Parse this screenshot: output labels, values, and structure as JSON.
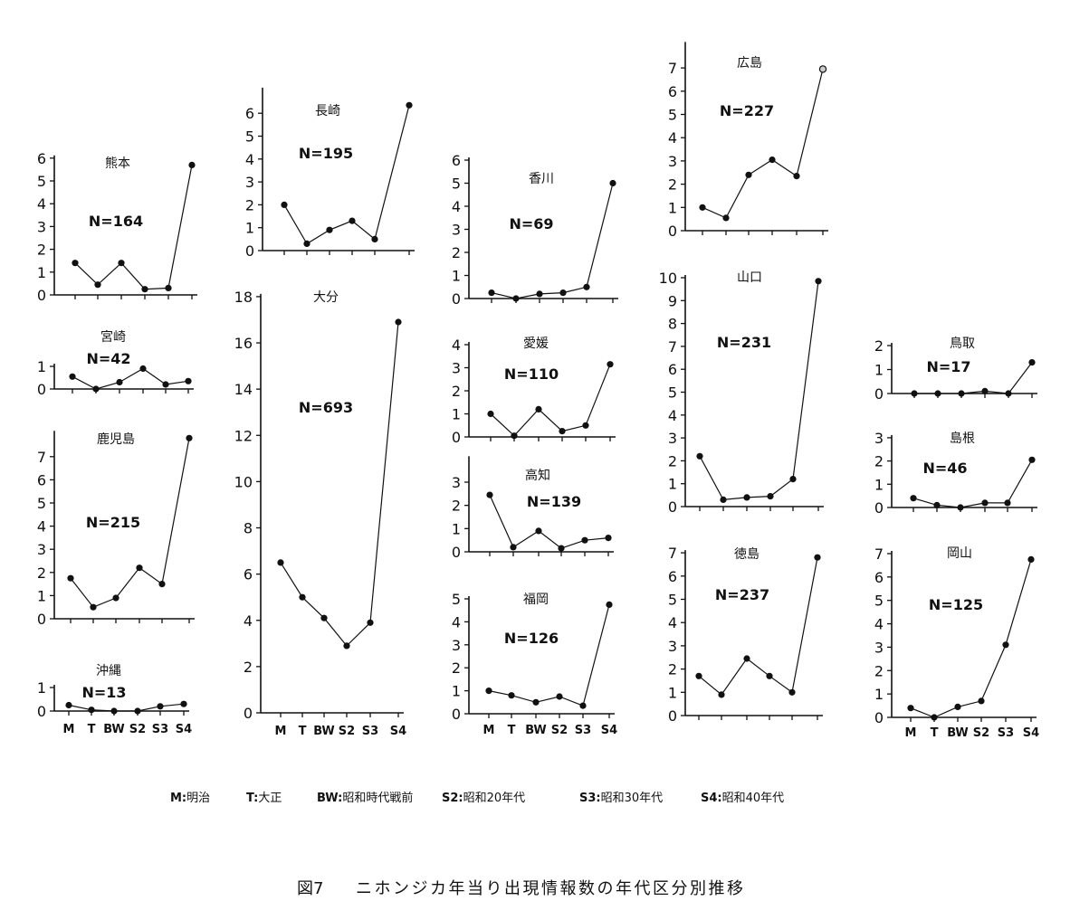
{
  "chart_data": [
    {
      "type": "line",
      "title": "熊本",
      "annotation": "N=164",
      "categories": [
        "M",
        "T",
        "BW",
        "S2",
        "S3",
        "S4"
      ],
      "values": [
        1.4,
        0.45,
        1.4,
        0.25,
        0.3,
        5.7
      ],
      "ylim": [
        0,
        6
      ],
      "yticks": [
        0,
        1,
        2,
        3,
        4,
        5,
        6
      ],
      "grid": false,
      "show_xtick_labels": false
    },
    {
      "type": "line",
      "title": "宮崎",
      "annotation": "N=42",
      "categories": [
        "M",
        "T",
        "BW",
        "S2",
        "S3",
        "S4"
      ],
      "values": [
        0.55,
        0,
        0.3,
        0.9,
        0.2,
        0.35
      ],
      "ylim": [
        0,
        1
      ],
      "yticks": [
        0,
        1
      ],
      "grid": false,
      "show_xtick_labels": false
    },
    {
      "type": "line",
      "title": "鹿児島",
      "annotation": "N=215",
      "categories": [
        "M",
        "T",
        "BW",
        "S2",
        "S3",
        "S4"
      ],
      "values": [
        1.75,
        0.5,
        0.9,
        2.2,
        1.5,
        7.8
      ],
      "ylim": [
        0,
        8
      ],
      "yticks": [
        0,
        1,
        2,
        3,
        4,
        5,
        6,
        7
      ],
      "grid": false,
      "show_xtick_labels": false
    },
    {
      "type": "line",
      "title": "沖縄",
      "annotation": "N=13",
      "categories": [
        "M",
        "T",
        "BW",
        "S2",
        "S3",
        "S4"
      ],
      "values": [
        0.25,
        0.05,
        0,
        0,
        0.2,
        0.3
      ],
      "ylim": [
        0,
        1
      ],
      "yticks": [
        0,
        1
      ],
      "grid": false,
      "show_xtick_labels": true
    },
    {
      "type": "line",
      "title": "長崎",
      "annotation": "N=195",
      "categories": [
        "M",
        "T",
        "BW",
        "S2",
        "S3",
        "S4"
      ],
      "values": [
        2.0,
        0.3,
        0.9,
        1.3,
        0.5,
        6.35
      ],
      "ylim": [
        0,
        7
      ],
      "yticks": [
        0,
        1,
        2,
        3,
        4,
        5,
        6
      ],
      "grid": false,
      "show_xtick_labels": false
    },
    {
      "type": "line",
      "title": "大分",
      "annotation": "N=693",
      "categories": [
        "M",
        "T",
        "BW",
        "S2",
        "S3",
        "S4"
      ],
      "values": [
        6.5,
        5.0,
        4.1,
        2.9,
        3.9,
        16.9
      ],
      "ylim": [
        0,
        18
      ],
      "yticks": [
        0,
        2,
        4,
        6,
        8,
        10,
        12,
        14,
        16,
        18
      ],
      "grid": false,
      "show_xtick_labels": true
    },
    {
      "type": "line",
      "title": "香川",
      "annotation": "N=69",
      "categories": [
        "M",
        "T",
        "BW",
        "S2",
        "S3",
        "S4"
      ],
      "values": [
        0.25,
        0,
        0.2,
        0.25,
        0.5,
        5.0
      ],
      "ylim": [
        0,
        6
      ],
      "yticks": [
        0,
        1,
        2,
        3,
        4,
        5,
        6
      ],
      "grid": false,
      "show_xtick_labels": false
    },
    {
      "type": "line",
      "title": "愛媛",
      "annotation": "N=110",
      "categories": [
        "M",
        "T",
        "BW",
        "S2",
        "S3",
        "S4"
      ],
      "values": [
        1.0,
        0.05,
        1.2,
        0.25,
        0.5,
        3.15
      ],
      "ylim": [
        0,
        4
      ],
      "yticks": [
        0,
        1,
        2,
        3,
        4
      ],
      "grid": false,
      "show_xtick_labels": false
    },
    {
      "type": "line",
      "title": "高知",
      "annotation": "N=139",
      "categories": [
        "M",
        "T",
        "BW",
        "S2",
        "S3",
        "S4"
      ],
      "values": [
        2.45,
        0.2,
        0.9,
        0.15,
        0.5,
        0.6
      ],
      "ylim": [
        0,
        4
      ],
      "yticks": [
        0,
        1,
        2,
        3
      ],
      "grid": false,
      "show_xtick_labels": false
    },
    {
      "type": "line",
      "title": "福岡",
      "annotation": "N=126",
      "categories": [
        "M",
        "T",
        "BW",
        "S2",
        "S3",
        "S4"
      ],
      "values": [
        1.0,
        0.8,
        0.5,
        0.75,
        0.35,
        4.75
      ],
      "ylim": [
        0,
        5
      ],
      "yticks": [
        0,
        1,
        2,
        3,
        4,
        5
      ],
      "grid": false,
      "show_xtick_labels": true
    },
    {
      "type": "line",
      "title": "広島",
      "annotation": "N=227",
      "categories": [
        "M",
        "T",
        "BW",
        "S2",
        "S3",
        "S4"
      ],
      "values": [
        1.0,
        0.55,
        2.4,
        3.05,
        2.35,
        6.95
      ],
      "ylim": [
        0,
        8
      ],
      "yticks": [
        0,
        1,
        2,
        3,
        4,
        5,
        6,
        7
      ],
      "grid": false,
      "show_xtick_labels": false
    },
    {
      "type": "line",
      "title": "山口",
      "annotation": "N=231",
      "categories": [
        "M",
        "T",
        "BW",
        "S2",
        "S3",
        "S4"
      ],
      "values": [
        2.2,
        0.3,
        0.4,
        0.45,
        1.2,
        9.85
      ],
      "ylim": [
        0,
        10
      ],
      "yticks": [
        0,
        1,
        2,
        3,
        4,
        5,
        6,
        7,
        8,
        9,
        10
      ],
      "grid": false,
      "show_xtick_labels": false
    },
    {
      "type": "line",
      "title": "徳島",
      "annotation": "N=237",
      "categories": [
        "M",
        "T",
        "BW",
        "S2",
        "S3",
        "S4"
      ],
      "values": [
        1.7,
        0.9,
        2.45,
        1.7,
        1.0,
        6.8
      ],
      "ylim": [
        0,
        7
      ],
      "yticks": [
        0,
        1,
        2,
        3,
        4,
        5,
        6,
        7
      ],
      "grid": false,
      "show_xtick_labels": false
    },
    {
      "type": "line",
      "title": "鳥取",
      "annotation": "N=17",
      "categories": [
        "M",
        "T",
        "BW",
        "S2",
        "S3",
        "S4"
      ],
      "values": [
        0,
        0,
        0,
        0.1,
        0,
        1.3
      ],
      "ylim": [
        0,
        2
      ],
      "yticks": [
        0,
        1,
        2
      ],
      "grid": false,
      "show_xtick_labels": false
    },
    {
      "type": "line",
      "title": "島根",
      "annotation": "N=46",
      "categories": [
        "M",
        "T",
        "BW",
        "S2",
        "S3",
        "S4"
      ],
      "values": [
        0.4,
        0.1,
        0,
        0.2,
        0.2,
        2.05
      ],
      "ylim": [
        0,
        3
      ],
      "yticks": [
        0,
        1,
        2,
        3
      ],
      "grid": false,
      "show_xtick_labels": false
    },
    {
      "type": "line",
      "title": "岡山",
      "annotation": "N=125",
      "categories": [
        "M",
        "T",
        "BW",
        "S2",
        "S3",
        "S4"
      ],
      "values": [
        0.4,
        0,
        0.45,
        0.7,
        3.1,
        6.75
      ],
      "ylim": [
        0,
        7
      ],
      "yticks": [
        0,
        1,
        2,
        3,
        4,
        5,
        6,
        7
      ],
      "grid": false,
      "show_xtick_labels": true
    }
  ],
  "legend": [
    {
      "abbr": "M:",
      "label": "明治"
    },
    {
      "abbr": "T:",
      "label": "大正"
    },
    {
      "abbr": "BW:",
      "label": "昭和時代戦前"
    },
    {
      "abbr": "S2:",
      "label": "昭和20年代"
    },
    {
      "abbr": "S3:",
      "label": "昭和30年代"
    },
    {
      "abbr": "S4:",
      "label": "昭和40年代"
    }
  ],
  "caption": {
    "figure_label": "図7",
    "text": "ニホンジカ年当り出現情報数の年代区分別推移"
  }
}
